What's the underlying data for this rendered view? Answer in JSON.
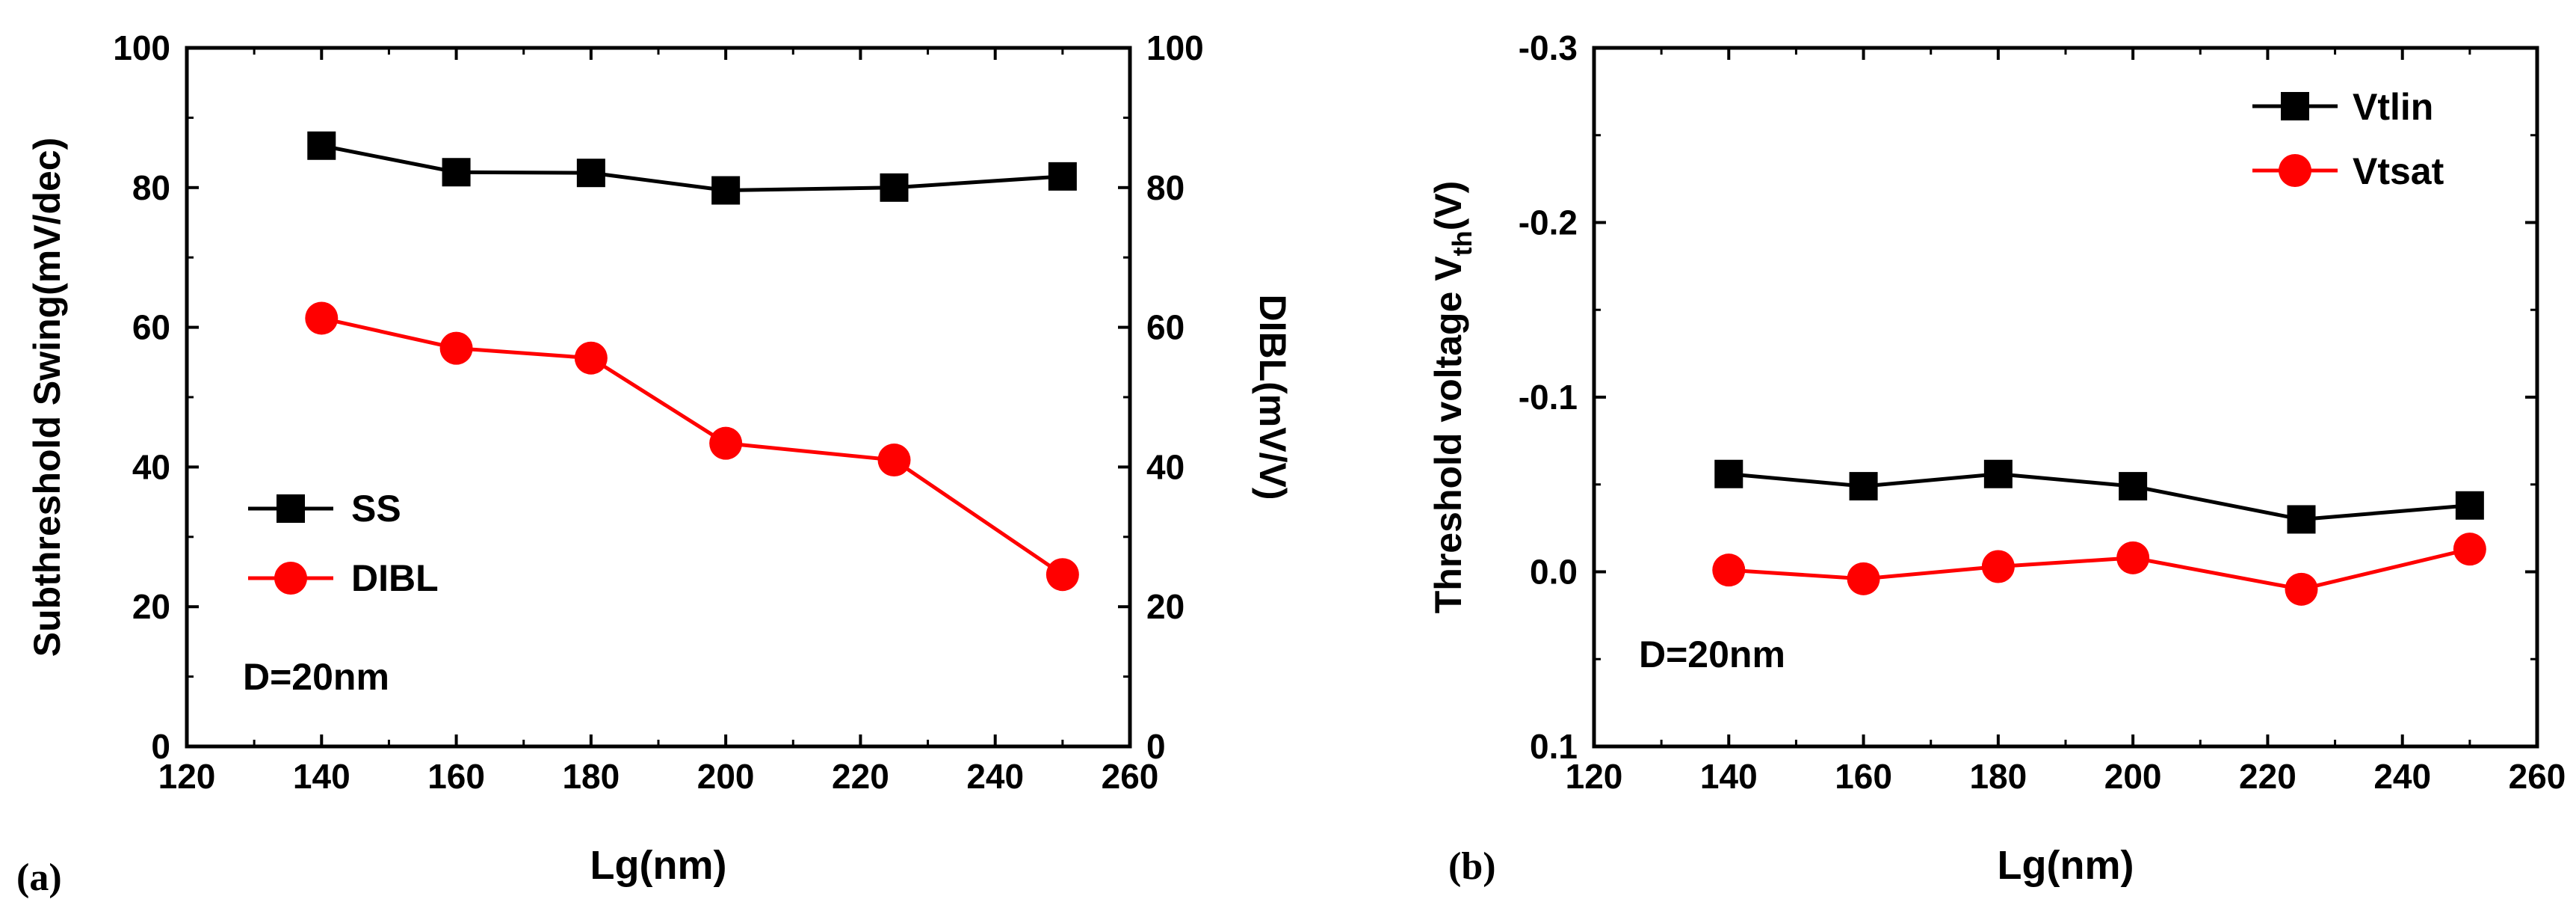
{
  "panels": [
    {
      "panel_label": "(a)",
      "xlabel": "Lg(nm)",
      "ylabel_left": "Subthreshold Swing(mV/dec)",
      "ylabel_right": "DIBL(mV/V)",
      "annotation": "D=20nm",
      "legend": [
        "SS",
        "DIBL"
      ]
    },
    {
      "panel_label": "(b)",
      "xlabel": "Lg(nm)",
      "ylabel_main": "Threshold voltage V",
      "ylabel_sub": "th",
      "ylabel_tail": "(V)",
      "annotation": "D=20nm",
      "legend": [
        "Vtlin",
        "Vtsat"
      ]
    }
  ],
  "chart_data": [
    {
      "type": "line",
      "title": "",
      "xlabel": "Lg(nm)",
      "ylabel": "Subthreshold Swing(mV/dec)",
      "y2label": "DIBL(mV/V)",
      "xlim": [
        120,
        260
      ],
      "xticks": [
        120,
        140,
        160,
        180,
        200,
        220,
        240,
        260
      ],
      "ylim": [
        0,
        100
      ],
      "yticks": [
        0,
        20,
        40,
        60,
        80,
        100
      ],
      "y2lim": [
        0,
        100
      ],
      "y2ticks": [
        0,
        20,
        40,
        60,
        80,
        100
      ],
      "grid": false,
      "legend_position": "middle-left",
      "x": [
        140,
        160,
        180,
        200,
        225,
        250
      ],
      "series": [
        {
          "name": "SS",
          "axis": "left",
          "marker": "square",
          "color": "#000000",
          "values": [
            86.0,
            82.2,
            82.1,
            79.6,
            80.0,
            81.6
          ]
        },
        {
          "name": "DIBL",
          "axis": "right",
          "marker": "circle",
          "color": "#ff0000",
          "values": [
            61.3,
            57.0,
            55.6,
            43.4,
            41.0,
            24.6
          ]
        }
      ],
      "annotations": [
        "D=20nm"
      ]
    },
    {
      "type": "line",
      "title": "",
      "xlabel": "Lg(nm)",
      "ylabel": "Threshold voltage Vth(V)",
      "xlim": [
        120,
        260
      ],
      "xticks": [
        120,
        140,
        160,
        180,
        200,
        220,
        240,
        260
      ],
      "ylim": [
        0.1,
        -0.3
      ],
      "yticks": [
        0.1,
        0.0,
        -0.1,
        -0.2,
        -0.3
      ],
      "ytick_labels": [
        "0.1",
        "0.0",
        "-0.1",
        "-0.2",
        "-0.3"
      ],
      "y_inverted": true,
      "grid": false,
      "legend_position": "top-right",
      "x": [
        140,
        160,
        180,
        200,
        225,
        250
      ],
      "series": [
        {
          "name": "Vtlin",
          "marker": "square",
          "color": "#000000",
          "values": [
            -0.056,
            -0.049,
            -0.056,
            -0.049,
            -0.03,
            -0.038
          ]
        },
        {
          "name": "Vtsat",
          "marker": "circle",
          "color": "#ff0000",
          "values": [
            -0.001,
            0.004,
            -0.003,
            -0.008,
            0.01,
            -0.013
          ]
        }
      ],
      "annotations": [
        "D=20nm"
      ]
    }
  ]
}
